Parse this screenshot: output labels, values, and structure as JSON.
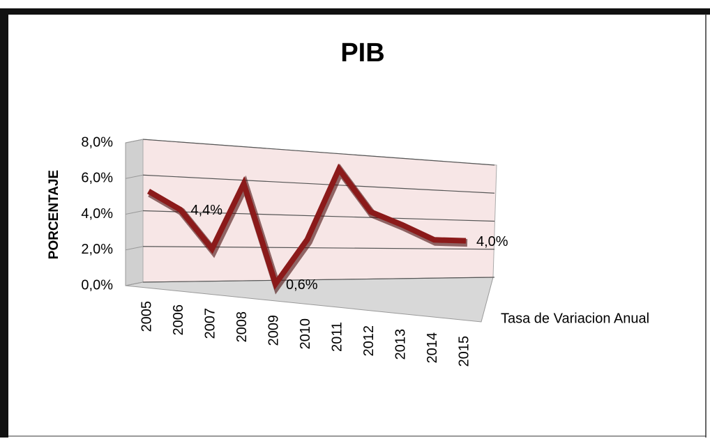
{
  "chart_data": {
    "type": "line",
    "title": "PIB",
    "ylabel": "PORCENTAJE",
    "categories": [
      "2005",
      "2006",
      "2007",
      "2008",
      "2009",
      "2010",
      "2011",
      "2012",
      "2013",
      "2014",
      "2015"
    ],
    "series": [
      {
        "name": "Tasa de Variacion Anual",
        "color": "#8b1a1a",
        "values": [
          5.3,
          4.4,
          2.3,
          6.2,
          0.6,
          3.3,
          7.5,
          5.2,
          4.6,
          3.9,
          4.0
        ],
        "value_labels": [
          null,
          "4,4%",
          null,
          null,
          "0,6%",
          null,
          null,
          null,
          null,
          null,
          "4,0%"
        ]
      }
    ],
    "ylim": [
      0,
      8
    ],
    "yticks": [
      {
        "value": 0,
        "label": "0,0%"
      },
      {
        "value": 2,
        "label": "2,0%"
      },
      {
        "value": 4,
        "label": "4,0%"
      },
      {
        "value": 6,
        "label": "6,0%"
      },
      {
        "value": 8,
        "label": "8,0%"
      }
    ],
    "grid": true,
    "legend": "right"
  }
}
